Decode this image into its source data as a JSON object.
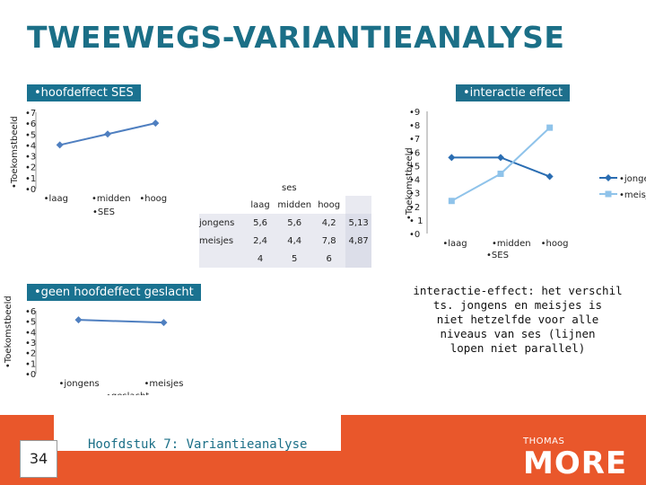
{
  "slide": {
    "title": "TWEEWEGS-VARIANTIEANALYSE",
    "label_main_effect": "•hoofdeffect SES",
    "label_interaction": "•interactie effect",
    "label_no_gender_effect": "•geen hoofdeffect geslacht",
    "explanation": "interactie-effect: het verschil\nts. jongens en meisjes is\nniet hetzelfde voor alle\nniveaus van ses (lijnen\nlopen niet parallel)",
    "page_number": "34",
    "chapter": "Hoofdstuk 7: Variantieanalyse",
    "logo_top": "THOMAS",
    "logo_main": "MORE"
  },
  "table": {
    "header": "ses",
    "columns": [
      "laag",
      "midden",
      "hoog"
    ],
    "rows": [
      {
        "label": "jongens",
        "values": [
          "5,6",
          "5,6",
          "4,2"
        ],
        "mean": "5,13"
      },
      {
        "label": "meisjes",
        "values": [
          "2,4",
          "4,4",
          "7,8"
        ],
        "mean": "4,87"
      }
    ],
    "col_means": [
      "4",
      "5",
      "6"
    ]
  },
  "chart_data": [
    {
      "type": "line",
      "title": "",
      "ylabel": "•Toekomstbeeld",
      "xlabel": "•SES",
      "categories": [
        "•laag",
        "•midden",
        "•hoog"
      ],
      "yticks": [
        "•0",
        "•1",
        "•2",
        "•3",
        "•4",
        "•5",
        "•6",
        "•7"
      ],
      "ylim": [
        0,
        7
      ],
      "series": [
        {
          "values": [
            4,
            5,
            6
          ]
        }
      ],
      "color": "#4f7fc0"
    },
    {
      "type": "line",
      "title": "",
      "ylabel": "•Toekomstbeeld",
      "xlabel": "•SES",
      "categories": [
        "•laag",
        "•midden",
        "•hoog"
      ],
      "yticks": [
        "•0",
        "• 1",
        "•2",
        "•3",
        "•4",
        "•5",
        "•6",
        "•7",
        "•8",
        "•9"
      ],
      "ylim": [
        0,
        9
      ],
      "series": [
        {
          "name": "•jongens",
          "values": [
            5.6,
            5.6,
            4.2
          ],
          "color": "#2a6db2"
        },
        {
          "name": "•meisjes",
          "values": [
            2.4,
            4.4,
            7.8
          ],
          "color": "#8fc3ea"
        }
      ],
      "legend": "right"
    },
    {
      "type": "line",
      "title": "",
      "ylabel": "•Toekomstbeeld",
      "xlabel": "•geslacht",
      "categories": [
        "•jongens",
        "•meisjes"
      ],
      "yticks": [
        "•0",
        "•1",
        "•2",
        "•3",
        "•4",
        "•5",
        "•6"
      ],
      "ylim": [
        0,
        6
      ],
      "series": [
        {
          "values": [
            5.13,
            4.87
          ]
        }
      ],
      "color": "#4f7fc0"
    }
  ]
}
